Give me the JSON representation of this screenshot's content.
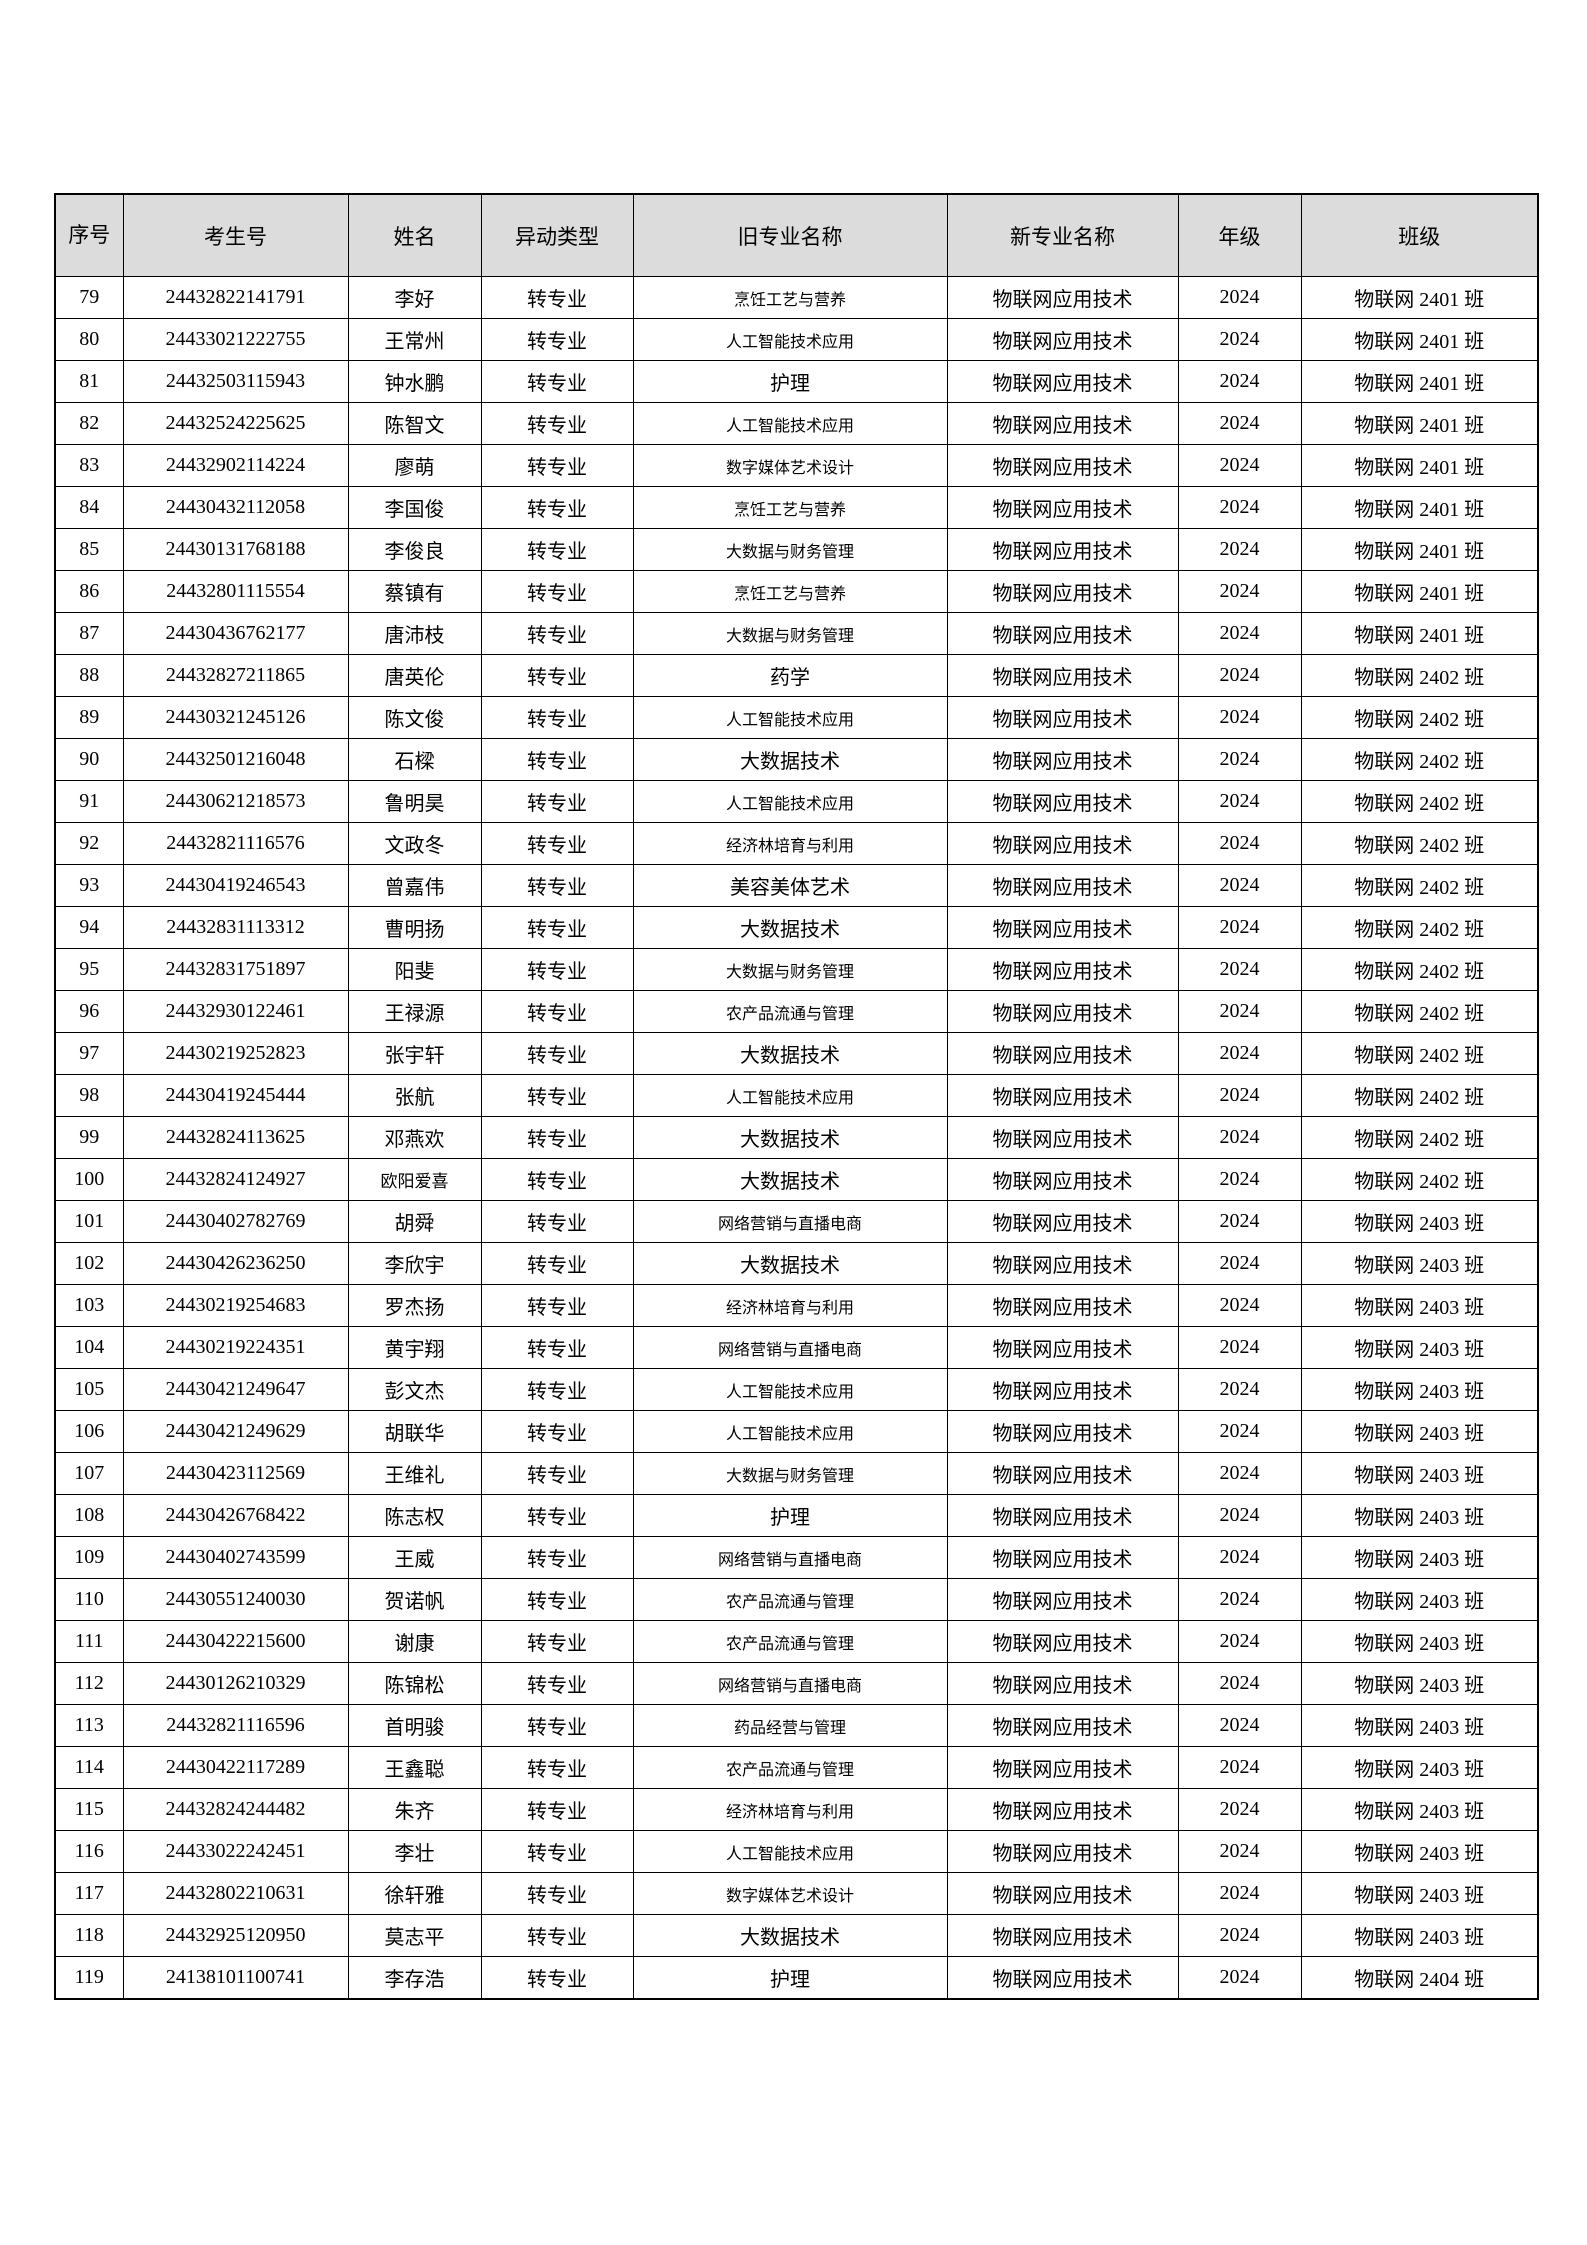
{
  "table": {
    "columns": [
      {
        "key": "no",
        "label": "序号"
      },
      {
        "key": "exam_no",
        "label": "考生号"
      },
      {
        "key": "name",
        "label": "姓名"
      },
      {
        "key": "change_type",
        "label": "异动类型"
      },
      {
        "key": "old_major",
        "label": "旧专业名称"
      },
      {
        "key": "new_major",
        "label": "新专业名称"
      },
      {
        "key": "grade",
        "label": "年级"
      },
      {
        "key": "class_name",
        "label": "班级"
      }
    ],
    "rows": [
      [
        "79",
        "24432822141791",
        "李好",
        "转专业",
        "烹饪工艺与营养",
        "物联网应用技术",
        "2024",
        "物联网 2401 班"
      ],
      [
        "80",
        "24433021222755",
        "王常州",
        "转专业",
        "人工智能技术应用",
        "物联网应用技术",
        "2024",
        "物联网 2401 班"
      ],
      [
        "81",
        "24432503115943",
        "钟水鹏",
        "转专业",
        "护理",
        "物联网应用技术",
        "2024",
        "物联网 2401 班"
      ],
      [
        "82",
        "24432524225625",
        "陈智文",
        "转专业",
        "人工智能技术应用",
        "物联网应用技术",
        "2024",
        "物联网 2401 班"
      ],
      [
        "83",
        "24432902114224",
        "廖萌",
        "转专业",
        "数字媒体艺术设计",
        "物联网应用技术",
        "2024",
        "物联网 2401 班"
      ],
      [
        "84",
        "24430432112058",
        "李国俊",
        "转专业",
        "烹饪工艺与营养",
        "物联网应用技术",
        "2024",
        "物联网 2401 班"
      ],
      [
        "85",
        "24430131768188",
        "李俊良",
        "转专业",
        "大数据与财务管理",
        "物联网应用技术",
        "2024",
        "物联网 2401 班"
      ],
      [
        "86",
        "24432801115554",
        "蔡镇有",
        "转专业",
        "烹饪工艺与营养",
        "物联网应用技术",
        "2024",
        "物联网 2401 班"
      ],
      [
        "87",
        "24430436762177",
        "唐沛枝",
        "转专业",
        "大数据与财务管理",
        "物联网应用技术",
        "2024",
        "物联网 2401 班"
      ],
      [
        "88",
        "24432827211865",
        "唐英伦",
        "转专业",
        "药学",
        "物联网应用技术",
        "2024",
        "物联网 2402 班"
      ],
      [
        "89",
        "24430321245126",
        "陈文俊",
        "转专业",
        "人工智能技术应用",
        "物联网应用技术",
        "2024",
        "物联网 2402 班"
      ],
      [
        "90",
        "24432501216048",
        "石樑",
        "转专业",
        "大数据技术",
        "物联网应用技术",
        "2024",
        "物联网 2402 班"
      ],
      [
        "91",
        "24430621218573",
        "鲁明昊",
        "转专业",
        "人工智能技术应用",
        "物联网应用技术",
        "2024",
        "物联网 2402 班"
      ],
      [
        "92",
        "24432821116576",
        "文政冬",
        "转专业",
        "经济林培育与利用",
        "物联网应用技术",
        "2024",
        "物联网 2402 班"
      ],
      [
        "93",
        "24430419246543",
        "曾嘉伟",
        "转专业",
        "美容美体艺术",
        "物联网应用技术",
        "2024",
        "物联网 2402 班"
      ],
      [
        "94",
        "24432831113312",
        "曹明扬",
        "转专业",
        "大数据技术",
        "物联网应用技术",
        "2024",
        "物联网 2402 班"
      ],
      [
        "95",
        "24432831751897",
        "阳斐",
        "转专业",
        "大数据与财务管理",
        "物联网应用技术",
        "2024",
        "物联网 2402 班"
      ],
      [
        "96",
        "24432930122461",
        "王禄源",
        "转专业",
        "农产品流通与管理",
        "物联网应用技术",
        "2024",
        "物联网 2402 班"
      ],
      [
        "97",
        "24430219252823",
        "张宇轩",
        "转专业",
        "大数据技术",
        "物联网应用技术",
        "2024",
        "物联网 2402 班"
      ],
      [
        "98",
        "24430419245444",
        "张航",
        "转专业",
        "人工智能技术应用",
        "物联网应用技术",
        "2024",
        "物联网 2402 班"
      ],
      [
        "99",
        "24432824113625",
        "邓燕欢",
        "转专业",
        "大数据技术",
        "物联网应用技术",
        "2024",
        "物联网 2402 班"
      ],
      [
        "100",
        "24432824124927",
        "欧阳爱喜",
        "转专业",
        "大数据技术",
        "物联网应用技术",
        "2024",
        "物联网 2402 班"
      ],
      [
        "101",
        "24430402782769",
        "胡舜",
        "转专业",
        "网络营销与直播电商",
        "物联网应用技术",
        "2024",
        "物联网 2403 班"
      ],
      [
        "102",
        "24430426236250",
        "李欣宇",
        "转专业",
        "大数据技术",
        "物联网应用技术",
        "2024",
        "物联网 2403 班"
      ],
      [
        "103",
        "24430219254683",
        "罗杰扬",
        "转专业",
        "经济林培育与利用",
        "物联网应用技术",
        "2024",
        "物联网 2403 班"
      ],
      [
        "104",
        "24430219224351",
        "黄宇翔",
        "转专业",
        "网络营销与直播电商",
        "物联网应用技术",
        "2024",
        "物联网 2403 班"
      ],
      [
        "105",
        "24430421249647",
        "彭文杰",
        "转专业",
        "人工智能技术应用",
        "物联网应用技术",
        "2024",
        "物联网 2403 班"
      ],
      [
        "106",
        "24430421249629",
        "胡联华",
        "转专业",
        "人工智能技术应用",
        "物联网应用技术",
        "2024",
        "物联网 2403 班"
      ],
      [
        "107",
        "24430423112569",
        "王维礼",
        "转专业",
        "大数据与财务管理",
        "物联网应用技术",
        "2024",
        "物联网 2403 班"
      ],
      [
        "108",
        "24430426768422",
        "陈志权",
        "转专业",
        "护理",
        "物联网应用技术",
        "2024",
        "物联网 2403 班"
      ],
      [
        "109",
        "24430402743599",
        "王威",
        "转专业",
        "网络营销与直播电商",
        "物联网应用技术",
        "2024",
        "物联网 2403 班"
      ],
      [
        "110",
        "24430551240030",
        "贺诺帆",
        "转专业",
        "农产品流通与管理",
        "物联网应用技术",
        "2024",
        "物联网 2403 班"
      ],
      [
        "111",
        "24430422215600",
        "谢康",
        "转专业",
        "农产品流通与管理",
        "物联网应用技术",
        "2024",
        "物联网 2403 班"
      ],
      [
        "112",
        "24430126210329",
        "陈锦松",
        "转专业",
        "网络营销与直播电商",
        "物联网应用技术",
        "2024",
        "物联网 2403 班"
      ],
      [
        "113",
        "24432821116596",
        "首明骏",
        "转专业",
        "药品经营与管理",
        "物联网应用技术",
        "2024",
        "物联网 2403 班"
      ],
      [
        "114",
        "24430422117289",
        "王鑫聪",
        "转专业",
        "农产品流通与管理",
        "物联网应用技术",
        "2024",
        "物联网 2403 班"
      ],
      [
        "115",
        "24432824244482",
        "朱齐",
        "转专业",
        "经济林培育与利用",
        "物联网应用技术",
        "2024",
        "物联网 2403 班"
      ],
      [
        "116",
        "24433022242451",
        "李壮",
        "转专业",
        "人工智能技术应用",
        "物联网应用技术",
        "2024",
        "物联网 2403 班"
      ],
      [
        "117",
        "24432802210631",
        "徐轩雅",
        "转专业",
        "数字媒体艺术设计",
        "物联网应用技术",
        "2024",
        "物联网 2403 班"
      ],
      [
        "118",
        "24432925120950",
        "莫志平",
        "转专业",
        "大数据技术",
        "物联网应用技术",
        "2024",
        "物联网 2403 班"
      ],
      [
        "119",
        "24138101100741",
        "李存浩",
        "转专业",
        "护理",
        "物联网应用技术",
        "2024",
        "物联网 2404 班"
      ]
    ]
  }
}
